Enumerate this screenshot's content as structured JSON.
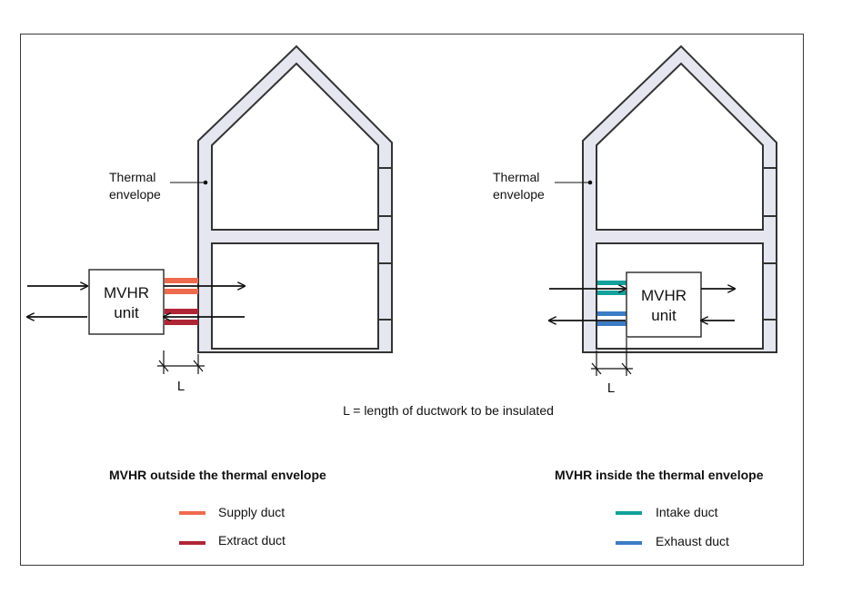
{
  "colors": {
    "wall_fill": "#e6e6f0",
    "wall_stroke": "#333333",
    "supply": "#ee6a4d",
    "extract": "#b02535",
    "intake": "#12a19b",
    "exhaust": "#3b7cc4"
  },
  "left": {
    "envelope_label_1": "Thermal",
    "envelope_label_2": "envelope",
    "unit_line_1": "MVHR",
    "unit_line_2": "unit",
    "length_label": "L",
    "heading": "MVHR outside the thermal envelope",
    "legend": [
      {
        "label": "Supply duct",
        "color_key": "supply"
      },
      {
        "label": "Extract duct",
        "color_key": "extract"
      }
    ]
  },
  "right": {
    "envelope_label_1": "Thermal",
    "envelope_label_2": "envelope",
    "unit_line_1": "MVHR",
    "unit_line_2": "unit",
    "length_label": "L",
    "heading": "MVHR inside the thermal envelope",
    "legend": [
      {
        "label": "Intake duct",
        "color_key": "intake"
      },
      {
        "label": "Exhaust duct",
        "color_key": "exhaust"
      }
    ]
  },
  "caption": "L = length of ductwork to be insulated"
}
